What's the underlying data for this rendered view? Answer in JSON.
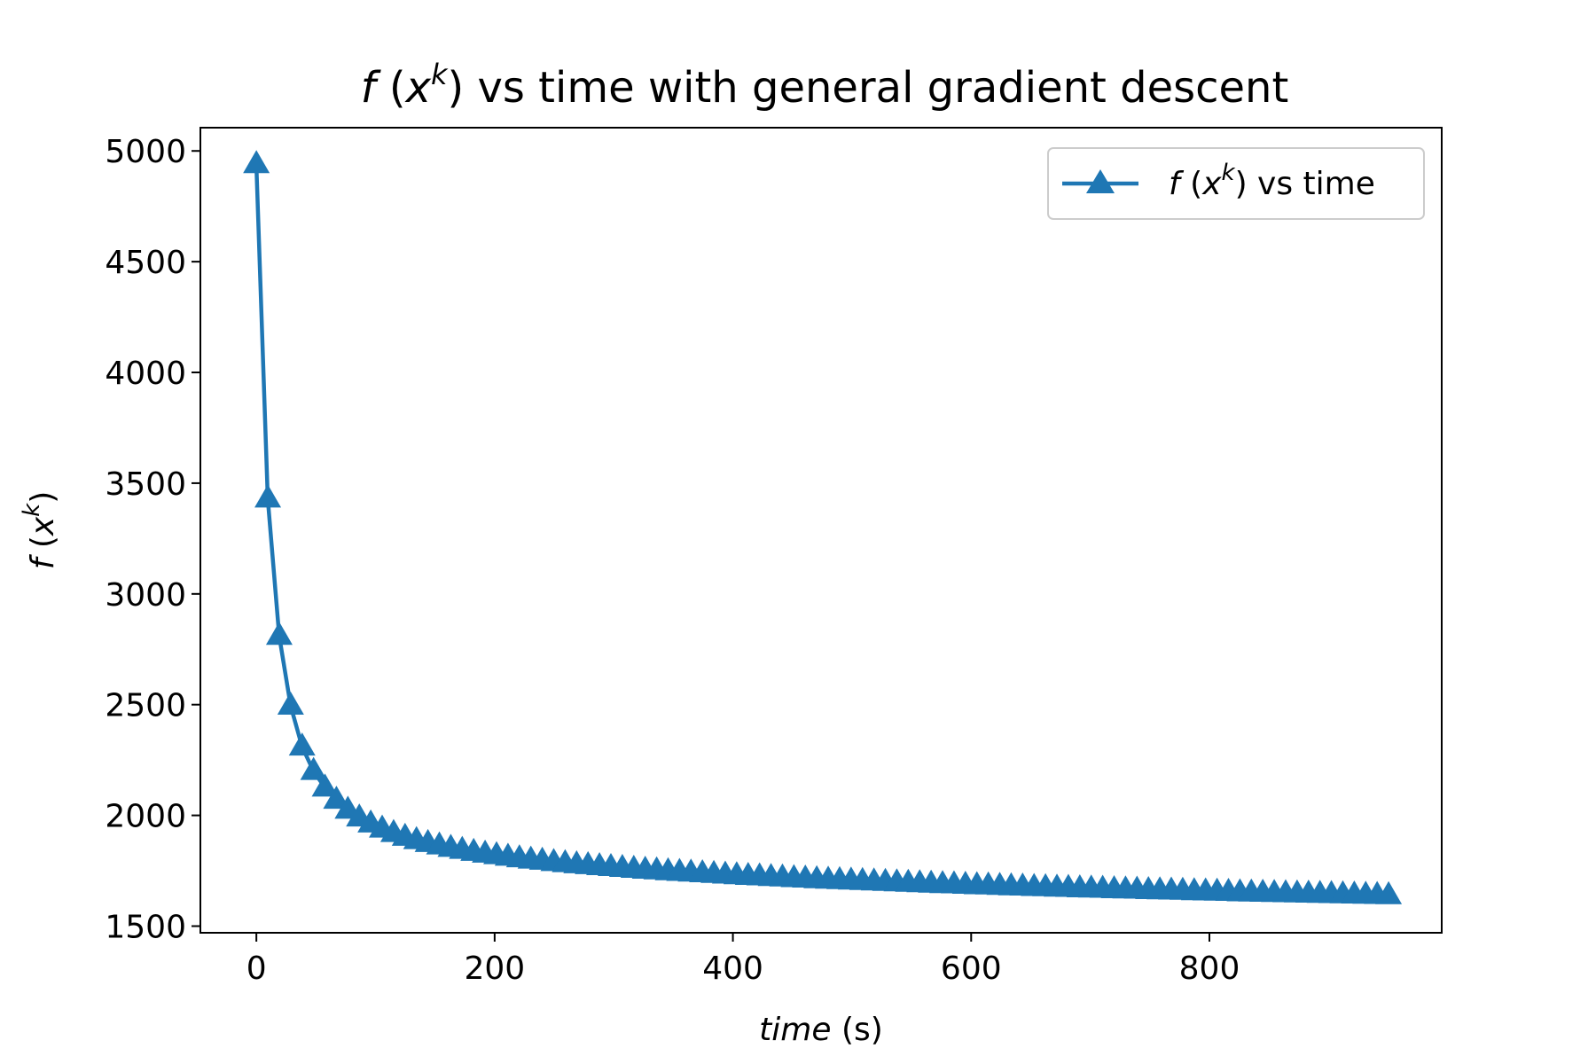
{
  "colors": {
    "series": "#1f77b4",
    "axes": "#000000",
    "legend_border": "#cccccc",
    "background": "#ffffff"
  },
  "chart_data": {
    "type": "line",
    "title": {
      "f": "f",
      "open": " (",
      "x": "x",
      "k": "k",
      "close": ")",
      "rest": " vs time with general gradient descent"
    },
    "xlabel": {
      "main": "time",
      "unit": " (s)"
    },
    "ylabel": {
      "f": "f",
      "open": " (",
      "x": "x",
      "k": "k",
      "close": ")"
    },
    "xlim": [
      -47,
      995
    ],
    "ylim": [
      1470,
      5105
    ],
    "xticks": [
      0,
      200,
      400,
      600,
      800
    ],
    "yticks": [
      1500,
      2000,
      2500,
      3000,
      3500,
      4000,
      4500,
      5000
    ],
    "grid": false,
    "legend_position": "top-right",
    "marker": "triangle-up",
    "series": [
      {
        "name": {
          "f": "f",
          "open": " (",
          "x": "x",
          "k": "k",
          "close": ")",
          "rest": " vs time"
        },
        "x": [
          0,
          9.6,
          19.2,
          28.8,
          38.4,
          48,
          57.6,
          67.2,
          76.8,
          86.4,
          96,
          105.6,
          115.2,
          124.8,
          134.4,
          144,
          153.6,
          163.2,
          172.8,
          182.4,
          192,
          201.6,
          211.2,
          220.8,
          230.4,
          240,
          249.6,
          259.2,
          268.8,
          278.4,
          288,
          297.6,
          307.2,
          316.8,
          326.4,
          336,
          345.6,
          355.2,
          364.8,
          374.4,
          384,
          393.6,
          403.2,
          412.8,
          422.4,
          432,
          441.6,
          451.2,
          460.8,
          470.4,
          480,
          489.6,
          499.2,
          508.8,
          518.4,
          528,
          537.6,
          547.2,
          556.8,
          566.4,
          576,
          585.6,
          595.2,
          604.8,
          614.4,
          624,
          633.6,
          643.2,
          652.8,
          662.4,
          672,
          681.6,
          691.2,
          700.8,
          710.4,
          720,
          729.6,
          739.2,
          748.8,
          758.4,
          768,
          777.6,
          787.2,
          796.8,
          806.4,
          816,
          825.6,
          835.2,
          844.8,
          854.4,
          864,
          873.6,
          883.2,
          892.8,
          902.4,
          912,
          921.6,
          931.2,
          940.8,
          950.4
        ],
        "y": [
          4940,
          3430,
          2810,
          2495,
          2310,
          2200,
          2125,
          2070,
          2025,
          1990,
          1963,
          1940,
          1920,
          1903,
          1888,
          1875,
          1864,
          1853,
          1844,
          1835,
          1827,
          1820,
          1813,
          1806,
          1800,
          1795,
          1789,
          1784,
          1779,
          1775,
          1770,
          1766,
          1762,
          1758,
          1754,
          1751,
          1747,
          1744,
          1741,
          1738,
          1735,
          1732,
          1729,
          1726,
          1724,
          1721,
          1719,
          1716,
          1714,
          1711,
          1709,
          1707,
          1705,
          1703,
          1701,
          1699,
          1697,
          1695,
          1693,
          1691,
          1689,
          1688,
          1686,
          1684,
          1683,
          1681,
          1679,
          1678,
          1676,
          1675,
          1673,
          1672,
          1670,
          1669,
          1668,
          1666,
          1665,
          1664,
          1662,
          1661,
          1660,
          1659,
          1657,
          1656,
          1655,
          1654,
          1652,
          1651,
          1650,
          1649,
          1648,
          1647,
          1646,
          1645,
          1644,
          1643,
          1642,
          1641,
          1640,
          1639
        ]
      }
    ]
  }
}
